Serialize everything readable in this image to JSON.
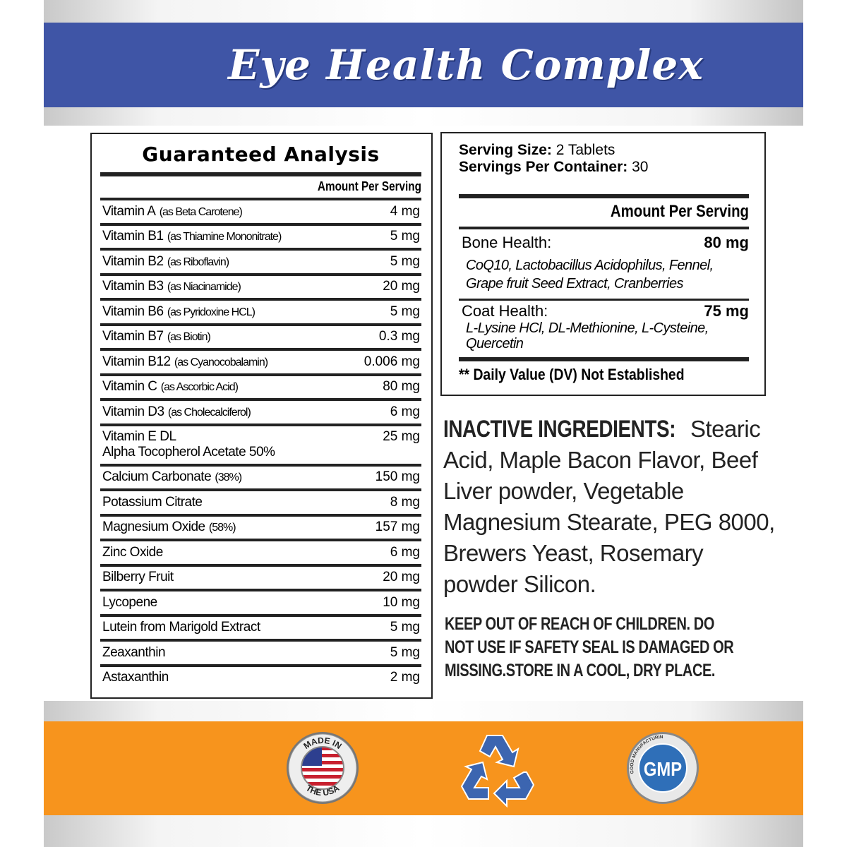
{
  "banner": {
    "title": "Eye Health Complex",
    "color": "#3f55a6"
  },
  "analysis": {
    "title": "Guaranteed Analysis",
    "column_header": "Amount Per Serving",
    "rows": [
      {
        "name": "Vitamin A",
        "detail": "(as Beta Carotene)",
        "amount": "4 mg"
      },
      {
        "name": "Vitamin B1",
        "detail": "(as Thiamine Mononitrate)",
        "amount": "5 mg"
      },
      {
        "name": "Vitamin B2",
        "detail": "(as Riboflavin)",
        "amount": "5 mg"
      },
      {
        "name": "Vitamin B3",
        "detail": "(as Niacinamide)",
        "amount": "20 mg"
      },
      {
        "name": "Vitamin B6",
        "detail": "(as Pyridoxine HCL)",
        "amount": "5 mg"
      },
      {
        "name": "Vitamin B7",
        "detail": "(as Biotin)",
        "amount": "0.3 mg"
      },
      {
        "name": "Vitamin B12",
        "detail": "(as Cyanocobalamin)",
        "amount": "0.006 mg"
      },
      {
        "name": "Vitamin C",
        "detail": "(as Ascorbic Acid)",
        "amount": "80 mg"
      },
      {
        "name": "Vitamin D3",
        "detail": "(as Cholecalciferol)",
        "amount": "6 mg"
      },
      {
        "name": "Vitamin E DL",
        "detail": "Alpha Tocopherol Acetate 50%",
        "amount": "25 mg"
      },
      {
        "name": "Calcium Carbonate",
        "detail": "(38%)",
        "amount": "150 mg"
      },
      {
        "name": "Potassium Citrate",
        "detail": "",
        "amount": "8 mg"
      },
      {
        "name": "Magnesium Oxide",
        "detail": "(58%)",
        "amount": "157 mg"
      },
      {
        "name": "Zinc Oxide",
        "detail": "",
        "amount": "6 mg"
      },
      {
        "name": "Bilberry Fruit",
        "detail": "",
        "amount": "20 mg"
      },
      {
        "name": "Lycopene",
        "detail": "",
        "amount": "10 mg"
      },
      {
        "name": "Lutein from Marigold Extract",
        "detail": "",
        "amount": "5 mg"
      },
      {
        "name": "Zeaxanthin",
        "detail": "",
        "amount": "5 mg"
      },
      {
        "name": "Astaxanthin",
        "detail": "",
        "amount": "2 mg"
      }
    ]
  },
  "facts": {
    "serving_size_label": "Serving Size:",
    "serving_size": "2 Tablets",
    "servings_label": "Servings Per Container:",
    "servings": "30",
    "column_header": "Amount Per Serving",
    "bone_label": "Bone Health:",
    "bone_amount": "80 mg",
    "bone_ingredients": "CoQ10, Lactobacillus Acidophilus, Fennel, Grape fruit Seed Extract, Cranberries",
    "coat_label": "Coat Health:",
    "coat_amount": "75 mg",
    "coat_ingredients": "L-Lysine HCl, DL-Methionine, L-Cysteine, Quercetin",
    "dv_note": "** Daily Value (DV) Not Established"
  },
  "inactive": {
    "label": "INACTIVE INGREDIENTS:",
    "text": "Stearic Acid, Maple Bacon Flavor, Beef Liver powder, Vegetable Magnesium Stearate, PEG 8000, Brewers Yeast, Rosemary powder Silicon."
  },
  "warning": "KEEP OUT OF REACH OF CHILDREN. DO NOT USE IF SAFETY SEAL IS DAMAGED OR MISSING.STORE IN A COOL, DRY PLACE.",
  "badges": {
    "usa": "MADE IN THE USA",
    "gmp": "GMP",
    "gmp_ring": "GOOD MANUFACTURING PRACTICE · QUALITY WITHOUT COMPROMISE",
    "recycle_icon": "recycle-icon",
    "orange": "#f7941d"
  }
}
